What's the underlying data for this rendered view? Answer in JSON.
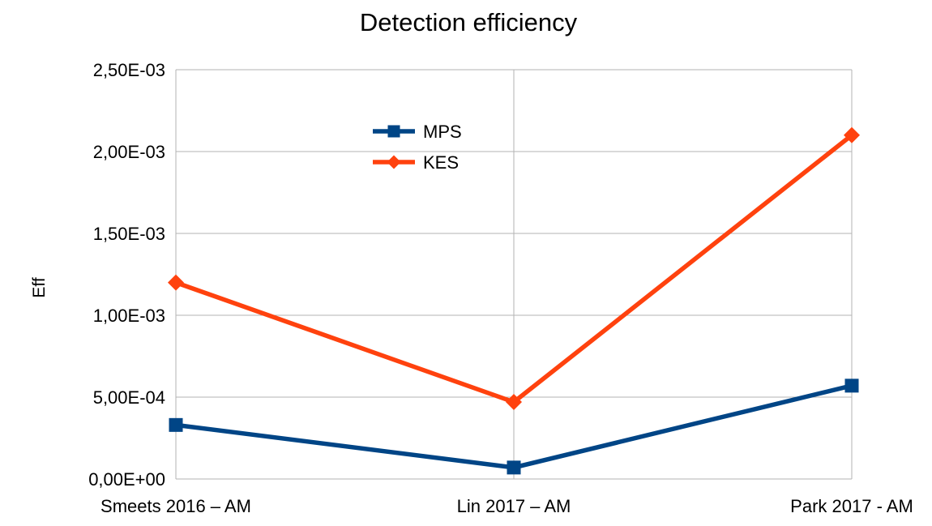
{
  "chart_data": {
    "type": "line",
    "title": "Detection efficiency",
    "xlabel": "",
    "ylabel": "Eff",
    "categories": [
      "Smeets 2016 – AM",
      "Lin 2017 – AM",
      "Park 2017 - AM"
    ],
    "ylim": [
      0,
      0.0025
    ],
    "yticks": [
      0,
      0.0005,
      0.001,
      0.0015,
      0.002,
      0.0025
    ],
    "ytick_labels": [
      "0,00E+00",
      "5,00E-04",
      "1,00E-03",
      "1,50E-03",
      "2,00E-03",
      "2,50E-03"
    ],
    "grid": true,
    "legend_position": "top-center",
    "series": [
      {
        "name": "MPS",
        "values": [
          0.00033,
          7e-05,
          0.00057
        ],
        "color": "#004586",
        "marker": "square"
      },
      {
        "name": "KES",
        "values": [
          0.0012,
          0.00047,
          0.0021
        ],
        "color": "#ff420e",
        "marker": "diamond"
      }
    ]
  }
}
